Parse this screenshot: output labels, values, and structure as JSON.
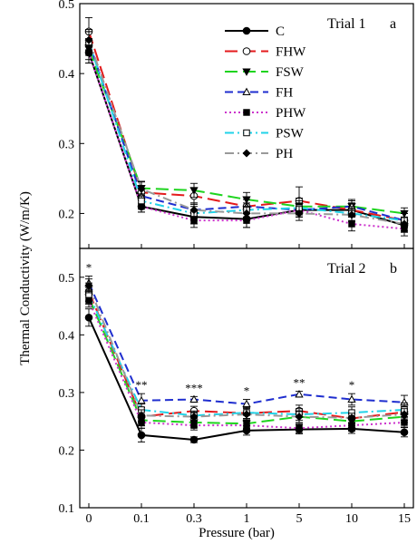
{
  "chart_data": {
    "type": "line",
    "x_categories": [
      "0",
      "0.1",
      "0.3",
      "1",
      "5",
      "10",
      "15"
    ],
    "xlabel": "Pressure (bar)",
    "ylabel": "Thermal Conductivity (W/m/K)",
    "legend": {
      "placement": "top-right of panel a",
      "entries": [
        "C",
        "FHW",
        "FSW",
        "FH",
        "PHW",
        "PSW",
        "PH"
      ]
    },
    "styles": {
      "C": {
        "color": "#000000",
        "dash": "",
        "marker": "circle-filled"
      },
      "FHW": {
        "color": "#e41a1c",
        "dash": "14,6",
        "marker": "circle-open"
      },
      "FSW": {
        "color": "#1ed41e",
        "dash": "14,6",
        "marker": "triangle-down-filled"
      },
      "FH": {
        "color": "#1f2ecf",
        "dash": "9,5",
        "marker": "triangle-up-open"
      },
      "PHW": {
        "color": "#cc33cc",
        "dash": "2,3",
        "marker": "square-filled"
      },
      "PSW": {
        "color": "#22d3e8",
        "dash": "10,4,2,4",
        "marker": "square-open"
      },
      "PH": {
        "color": "#999999",
        "dash": "10,4,2,4",
        "marker": "diamond-filled"
      }
    },
    "panels": [
      {
        "id": "a",
        "title": "Trial 1",
        "letter": "a",
        "ylim": [
          0.15,
          0.5
        ],
        "yticks": [
          0.2,
          0.3,
          0.4,
          0.5
        ],
        "annotations": [],
        "series": [
          {
            "name": "C",
            "values": [
              0.43,
              0.21,
              0.195,
              0.192,
              0.205,
              0.205,
              0.183
            ],
            "errors": [
              0.015,
              0.008,
              0.01,
              0.012,
              0.01,
              0.01,
              0.01
            ]
          },
          {
            "name": "FHW",
            "values": [
              0.46,
              0.23,
              0.225,
              0.21,
              0.218,
              0.205,
              0.19
            ],
            "errors": [
              0.02,
              0.01,
              0.012,
              0.01,
              0.02,
              0.01,
              0.01
            ]
          },
          {
            "name": "FSW",
            "values": [
              0.435,
              0.236,
              0.233,
              0.22,
              0.21,
              0.21,
              0.2
            ],
            "errors": [
              0.015,
              0.01,
              0.01,
              0.01,
              0.012,
              0.008,
              0.008
            ]
          },
          {
            "name": "FH",
            "values": [
              0.445,
              0.225,
              0.205,
              0.21,
              0.205,
              0.21,
              0.19
            ],
            "errors": [
              0.015,
              0.01,
              0.01,
              0.01,
              0.01,
              0.01,
              0.01
            ]
          },
          {
            "name": "PHW",
            "values": [
              0.43,
              0.21,
              0.19,
              0.19,
              0.205,
              0.185,
              0.178
            ],
            "errors": [
              0.015,
              0.008,
              0.01,
              0.01,
              0.01,
              0.01,
              0.01
            ]
          },
          {
            "name": "PSW",
            "values": [
              0.445,
              0.218,
              0.2,
              0.205,
              0.208,
              0.2,
              0.19
            ],
            "errors": [
              0.015,
              0.01,
              0.01,
              0.01,
              0.01,
              0.01,
              0.01
            ]
          },
          {
            "name": "PH",
            "values": [
              0.448,
              0.235,
              0.205,
              0.2,
              0.2,
              0.198,
              0.185
            ],
            "errors": [
              0.015,
              0.01,
              0.01,
              0.01,
              0.01,
              0.01,
              0.01
            ]
          }
        ]
      },
      {
        "id": "b",
        "title": "Trial 2",
        "letter": "b",
        "ylim": [
          0.1,
          0.55
        ],
        "yticks": [
          0.1,
          0.2,
          0.3,
          0.4,
          0.5
        ],
        "annotations": [
          "*",
          "**",
          "***",
          "*",
          "**",
          "*",
          ""
        ],
        "series": [
          {
            "name": "C",
            "values": [
              0.43,
              0.226,
              0.218,
              0.234,
              0.236,
              0.237,
              0.231
            ],
            "errors": [
              0.015,
              0.012,
              0.005,
              0.008,
              0.008,
              0.008,
              0.008
            ]
          },
          {
            "name": "FHW",
            "values": [
              0.475,
              0.258,
              0.268,
              0.264,
              0.268,
              0.255,
              0.266
            ],
            "errors": [
              0.015,
              0.01,
              0.008,
              0.01,
              0.01,
              0.008,
              0.01
            ]
          },
          {
            "name": "FSW",
            "values": [
              0.465,
              0.252,
              0.248,
              0.246,
              0.258,
              0.25,
              0.258
            ],
            "errors": [
              0.012,
              0.01,
              0.008,
              0.008,
              0.01,
              0.008,
              0.01
            ]
          },
          {
            "name": "FH",
            "values": [
              0.49,
              0.286,
              0.288,
              0.28,
              0.297,
              0.288,
              0.283
            ],
            "errors": [
              0.012,
              0.012,
              0.005,
              0.008,
              0.005,
              0.01,
              0.012
            ]
          },
          {
            "name": "PHW",
            "values": [
              0.46,
              0.248,
              0.243,
              0.243,
              0.238,
              0.243,
              0.248
            ],
            "errors": [
              0.012,
              0.01,
              0.008,
              0.008,
              0.008,
              0.01,
              0.008
            ]
          },
          {
            "name": "PSW",
            "values": [
              0.47,
              0.27,
              0.26,
              0.265,
              0.262,
              0.265,
              0.27
            ],
            "errors": [
              0.012,
              0.01,
              0.008,
              0.01,
              0.01,
              0.01,
              0.012
            ]
          },
          {
            "name": "PH",
            "values": [
              0.485,
              0.26,
              0.258,
              0.262,
              0.258,
              0.256,
              0.262
            ],
            "errors": [
              0.012,
              0.01,
              0.008,
              0.01,
              0.01,
              0.008,
              0.01
            ]
          }
        ]
      }
    ]
  }
}
